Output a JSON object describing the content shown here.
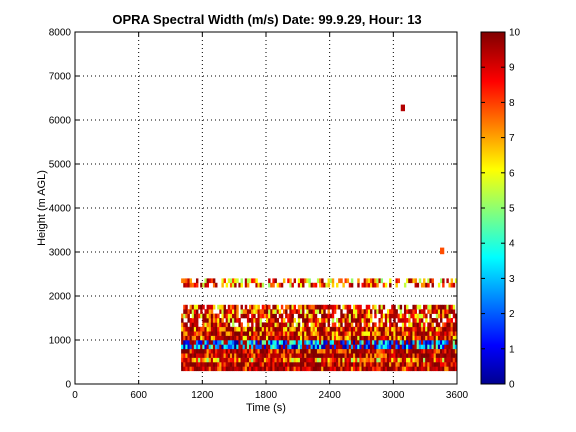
{
  "chart_data": {
    "type": "heatmap",
    "title": "OPRA Spectral Width (m/s)  Date: 99.9.29, Hour: 13",
    "xlabel": "Time (s)",
    "ylabel": "Height (m AGL)",
    "xlim": [
      0,
      3600
    ],
    "ylim": [
      0,
      8000
    ],
    "xticks": [
      0,
      600,
      1200,
      1800,
      2400,
      3000,
      3600
    ],
    "yticks": [
      0,
      1000,
      2000,
      3000,
      4000,
      5000,
      6000,
      7000,
      8000
    ],
    "grid": true,
    "colormap": "jet",
    "colorbar": {
      "range": [
        0,
        10
      ],
      "ticks": [
        0,
        1,
        2,
        3,
        4,
        5,
        6,
        7,
        8,
        9,
        10
      ]
    },
    "data_extent": {
      "time_start": 1000,
      "time_end": 3600,
      "height_start": 300,
      "height_end": 2400
    },
    "layers": [
      {
        "height_range": [
          300,
          500
        ],
        "typical_value": 9.5
      },
      {
        "height_range": [
          500,
          600
        ],
        "typical_value": 7.5
      },
      {
        "height_range": [
          600,
          800
        ],
        "typical_value": 9.5
      },
      {
        "height_range": [
          800,
          1000
        ],
        "typical_value": 2.5
      },
      {
        "height_range": [
          1000,
          1300
        ],
        "typical_value": 8.5
      },
      {
        "height_range": [
          1300,
          1800
        ],
        "typical_value": 8
      },
      {
        "height_range": [
          2200,
          2400
        ],
        "typical_value": 7.5
      }
    ],
    "isolated_points": [
      {
        "time": 3070,
        "height": 6200,
        "value": 9.5
      },
      {
        "time": 3440,
        "height": 2950,
        "value": 8
      }
    ]
  }
}
